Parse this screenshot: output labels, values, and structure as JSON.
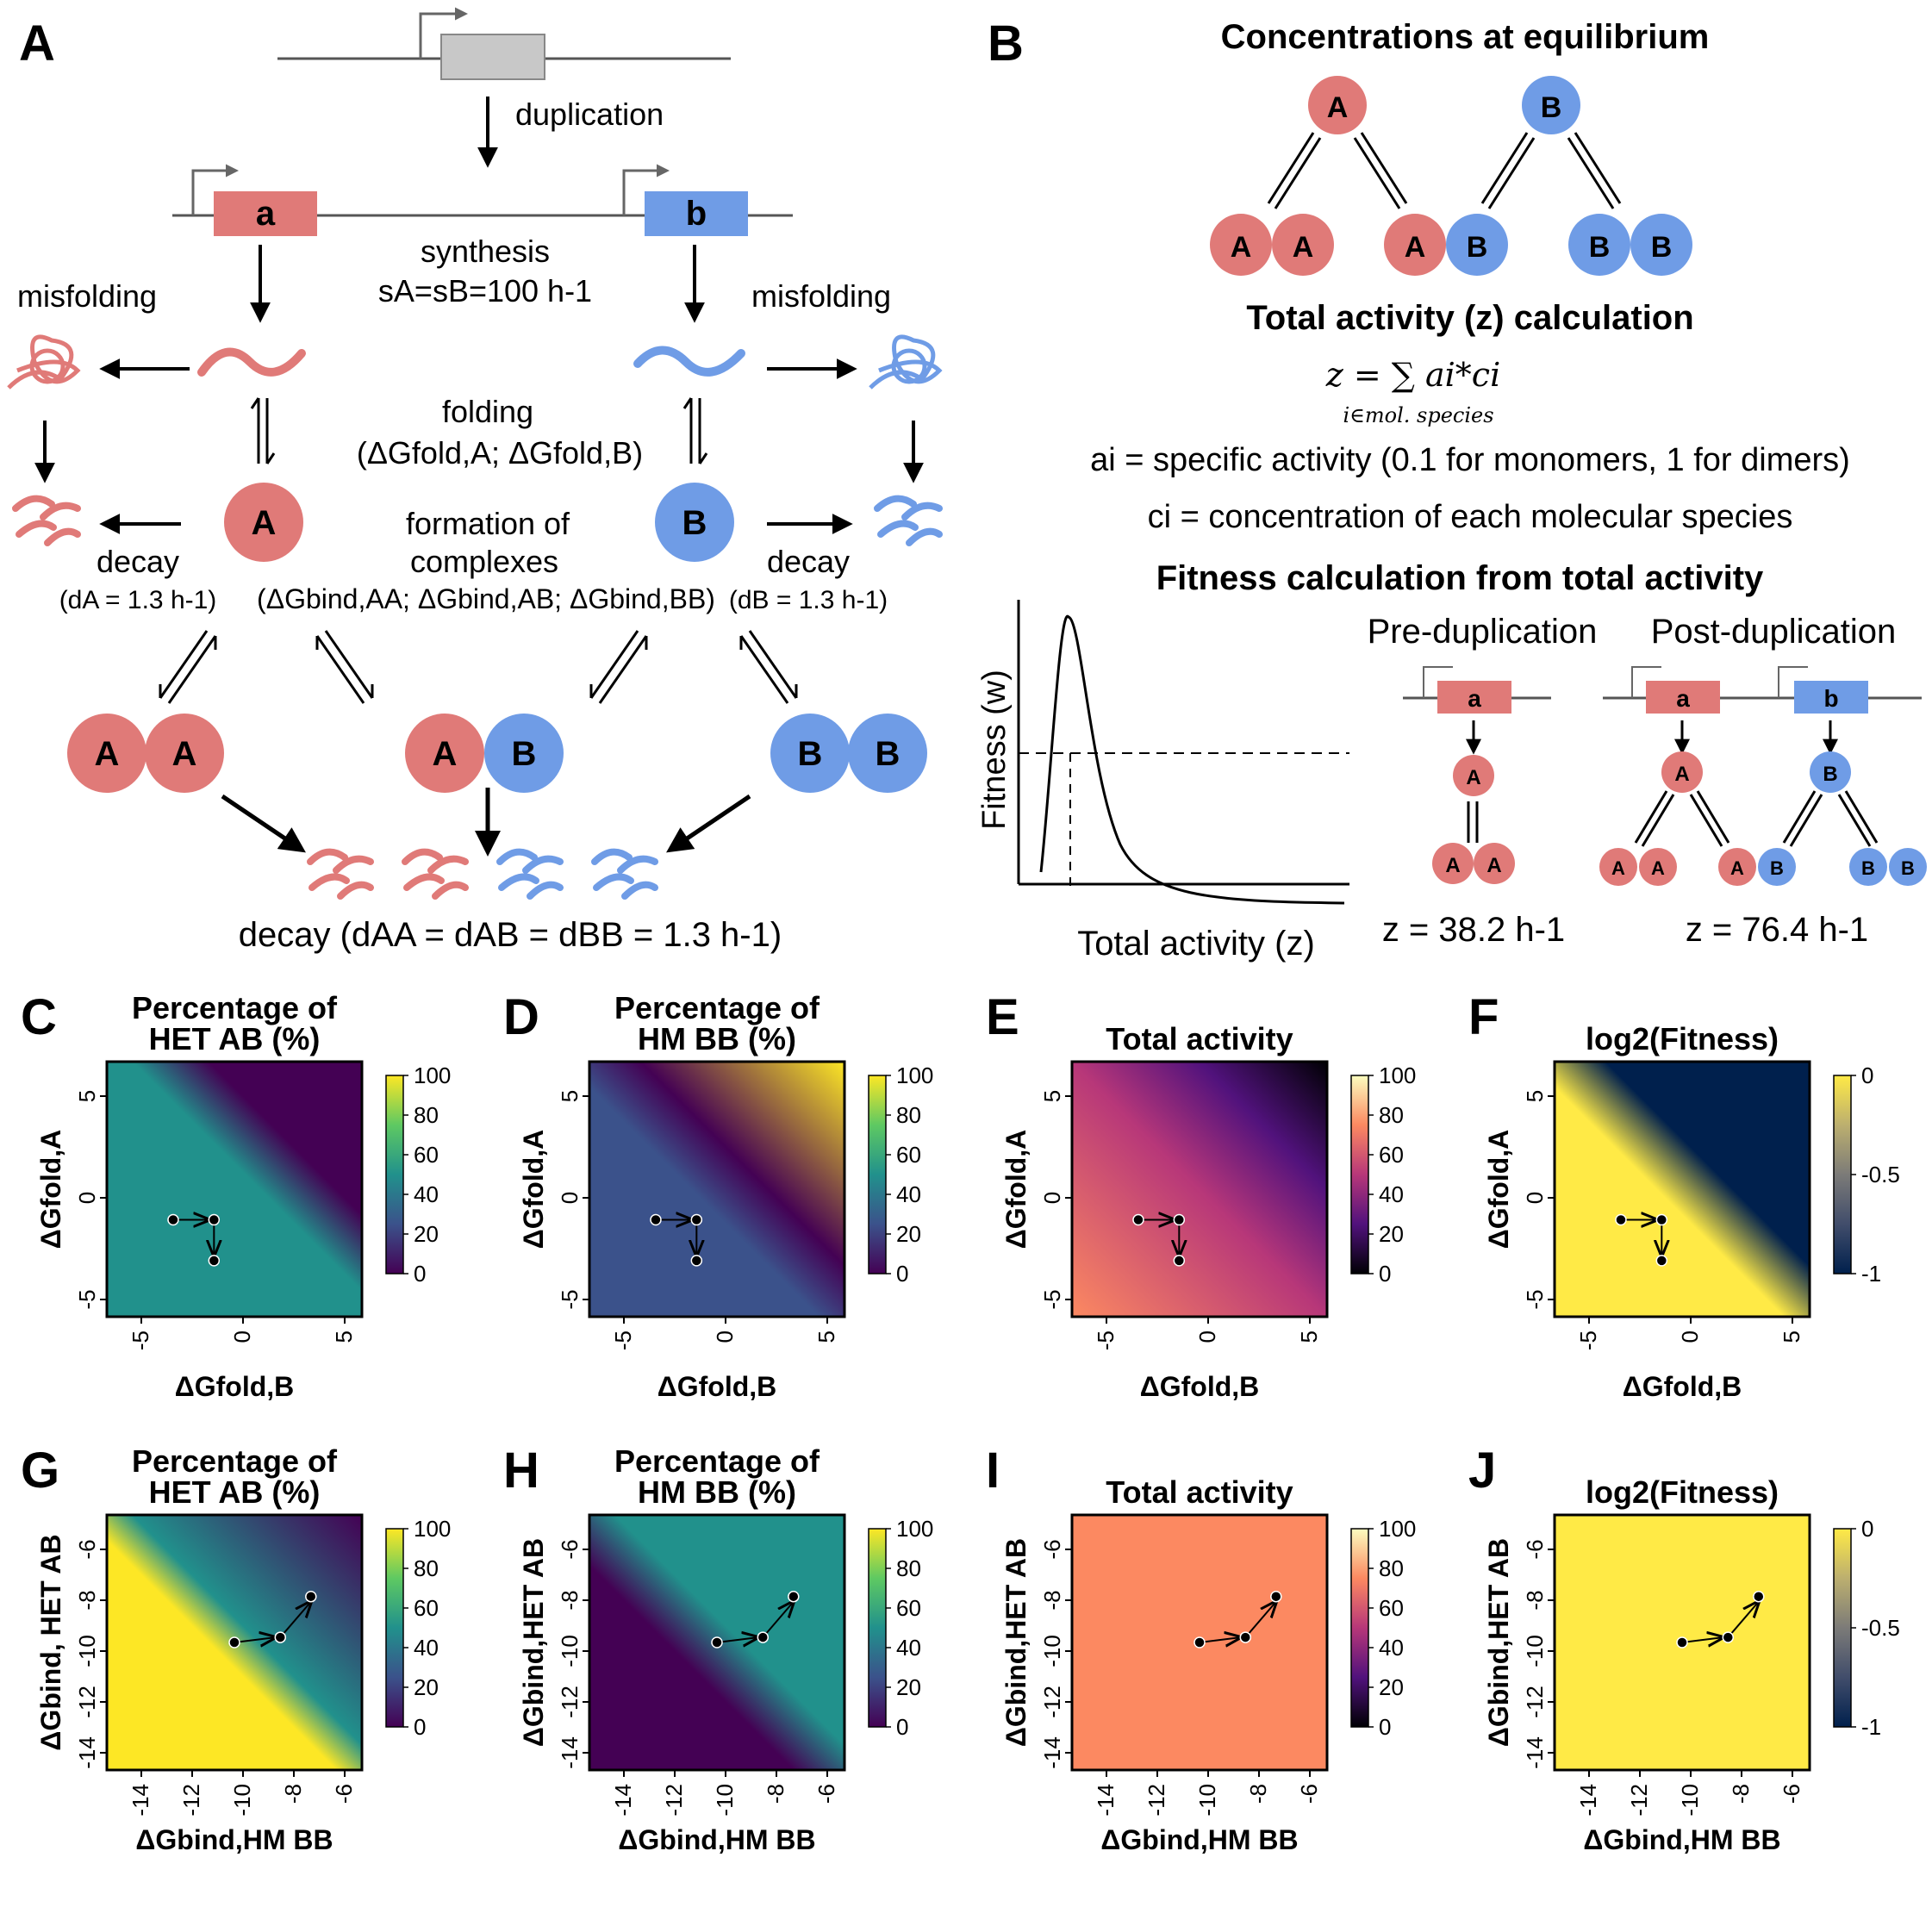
{
  "colors": {
    "red": "#e07a78",
    "blue": "#6f9ce6",
    "gray": "#c8c8c8",
    "dark": "#222222"
  },
  "panels": {
    "A": "A",
    "B": "B",
    "C": "C",
    "D": "D",
    "E": "E",
    "F": "F",
    "G": "G",
    "H": "H",
    "I": "I",
    "J": "J"
  },
  "panel_A": {
    "duplication": "duplication",
    "gene_a": "a",
    "gene_b": "b",
    "synthesis": "synthesis",
    "synthesis_rate": "sA=sB=100 h-1",
    "misfolding_left": "misfolding",
    "misfolding_right": "misfolding",
    "folding": "folding",
    "folding_dg": "(ΔGfold,A; ΔGfold,B)",
    "protein_A": "A",
    "protein_B": "B",
    "formation_1": "formation of",
    "formation_2": "complexes",
    "formation_dg": "(ΔGbind,AA; ΔGbind,AB; ΔGbind,BB)",
    "decay_left": "decay",
    "decay_left_rate": "(dA = 1.3 h-1)",
    "decay_right": "decay",
    "decay_right_rate": "(dB = 1.3 h-1)",
    "decay_complex": "decay (dAA = dAB = dBB = 1.3 h-1)"
  },
  "panel_B": {
    "title_conc": "Concentrations at equilibrium",
    "title_activity": "Total activity (z) calculation",
    "formula": "z = ∑ ai*ci",
    "formula_sub": "i∈mol. species",
    "def_a": "ai = specific activity (0.1 for monomers, 1 for dimers)",
    "def_c": "ci = concentration of each molecular species",
    "title_fitness": "Fitness calculation from total activity",
    "fitness_ylabel": "Fitness (w)",
    "fitness_xlabel": "Total activity (z)",
    "pre_dup": "Pre-duplication",
    "post_dup": "Post-duplication",
    "z_pre": "z = 38.2 h-1",
    "z_post": "z = 76.4 h-1"
  },
  "heatmaps": [
    {
      "id": "C",
      "title1": "Percentage of",
      "title2": "HET AB (%)",
      "xlabel": "ΔGfold,B",
      "ylabel": "ΔGfold,A",
      "xticks": [
        "-5",
        "0",
        "5"
      ],
      "yticks": [
        "5",
        "0",
        "-5"
      ],
      "cbar": [
        "100",
        "80",
        "60",
        "40",
        "20",
        "0"
      ],
      "cmap": "viridis"
    },
    {
      "id": "D",
      "title1": "Percentage of",
      "title2": "HM BB (%)",
      "xlabel": "ΔGfold,B",
      "ylabel": "ΔGfold,A",
      "xticks": [
        "-5",
        "0",
        "5"
      ],
      "yticks": [
        "5",
        "0",
        "-5"
      ],
      "cbar": [
        "100",
        "80",
        "60",
        "40",
        "20",
        "0"
      ],
      "cmap": "viridis"
    },
    {
      "id": "E",
      "title1": "",
      "title2": "Total activity",
      "xlabel": "ΔGfold,B",
      "ylabel": "ΔGfold,A",
      "xticks": [
        "-5",
        "0",
        "5"
      ],
      "yticks": [
        "5",
        "0",
        "-5"
      ],
      "cbar": [
        "100",
        "80",
        "60",
        "40",
        "20",
        "0"
      ],
      "cmap": "magma"
    },
    {
      "id": "F",
      "title1": "",
      "title2": "log2(Fitness)",
      "xlabel": "ΔGfold,B",
      "ylabel": "ΔGfold,A",
      "xticks": [
        "-5",
        "0",
        "5"
      ],
      "yticks": [
        "5",
        "0",
        "-5"
      ],
      "cbar": [
        "0",
        "-0.5",
        "-1"
      ],
      "cmap": "cividis"
    },
    {
      "id": "G",
      "title1": "Percentage of",
      "title2": "HET AB (%)",
      "xlabel": "ΔGbind,HM BB",
      "ylabel": "ΔGbind, HET AB",
      "xticks": [
        "-14",
        "-12",
        "-10",
        "-8",
        "-6"
      ],
      "yticks": [
        "-6",
        "-8",
        "-10",
        "-12",
        "-14"
      ],
      "cbar": [
        "100",
        "80",
        "60",
        "40",
        "20",
        "0"
      ],
      "cmap": "viridis"
    },
    {
      "id": "H",
      "title1": "Percentage of",
      "title2": "HM BB (%)",
      "xlabel": "ΔGbind,HM BB",
      "ylabel": "ΔGbind,HET AB",
      "xticks": [
        "-14",
        "-12",
        "-10",
        "-8",
        "-6"
      ],
      "yticks": [
        "-6",
        "-8",
        "-10",
        "-12",
        "-14"
      ],
      "cbar": [
        "100",
        "80",
        "60",
        "40",
        "20",
        "0"
      ],
      "cmap": "viridis"
    },
    {
      "id": "I",
      "title1": "",
      "title2": "Total activity",
      "xlabel": "ΔGbind,HM BB",
      "ylabel": "ΔGbind,HET AB",
      "xticks": [
        "-14",
        "-12",
        "-10",
        "-8",
        "-6"
      ],
      "yticks": [
        "-6",
        "-8",
        "-10",
        "-12",
        "-14"
      ],
      "cbar": [
        "100",
        "80",
        "60",
        "40",
        "20",
        "0"
      ],
      "cmap": "magma"
    },
    {
      "id": "J",
      "title1": "",
      "title2": "log2(Fitness)",
      "xlabel": "ΔGbind,HM BB",
      "ylabel": "ΔGbind,HET AB",
      "xticks": [
        "-14",
        "-12",
        "-10",
        "-8",
        "-6"
      ],
      "yticks": [
        "-6",
        "-8",
        "-10",
        "-12",
        "-14"
      ],
      "cbar": [
        "0",
        "-0.5",
        "-1"
      ],
      "cmap": "cividis"
    }
  ]
}
